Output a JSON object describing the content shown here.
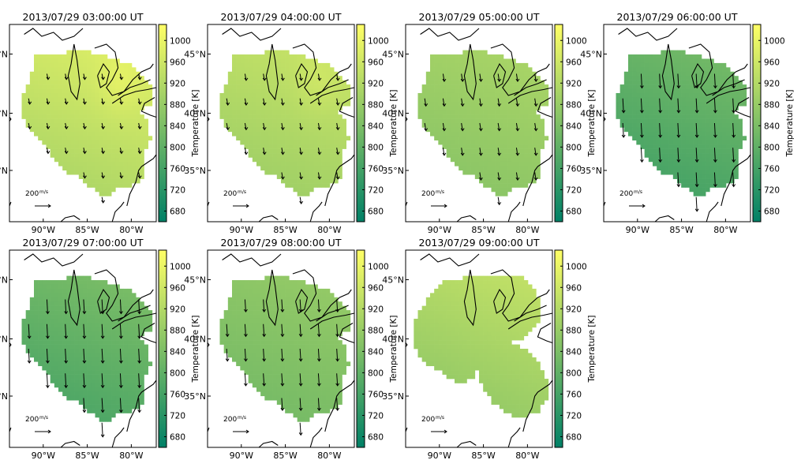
{
  "chart_data": {
    "type": "heatmap",
    "colorbar": {
      "label": "Temperature [K]",
      "min": 660,
      "max": 1030,
      "ticks": [
        680,
        720,
        760,
        800,
        840,
        880,
        920,
        960,
        1000
      ],
      "colormap": "summer",
      "colors": [
        "#008066",
        "#ffff66"
      ]
    },
    "xticks": [
      "90°W",
      "85°W",
      "80°W"
    ],
    "yticks": [
      "45°N",
      "40°N",
      "35°N"
    ],
    "quiver_key_label": "200",
    "quiver_key_unit": "m/s",
    "panels": [
      {
        "title": "2013/07/29 03:00:00 UT",
        "mean_temperature": 940,
        "spread": 60,
        "center_region": "north-east",
        "wind_v": -12,
        "wind_u": 3,
        "has_gap": false
      },
      {
        "title": "2013/07/29 04:00:00 UT",
        "mean_temperature": 915,
        "spread": 50,
        "center_region": "north-east",
        "wind_v": -14,
        "wind_u": 3,
        "has_gap": false
      },
      {
        "title": "2013/07/29 05:00:00 UT",
        "mean_temperature": 880,
        "spread": 40,
        "center_region": "north",
        "wind_v": -16,
        "wind_u": 3,
        "has_gap": false
      },
      {
        "title": "2013/07/29 06:00:00 UT",
        "mean_temperature": 790,
        "spread": 60,
        "center_region": "north",
        "wind_v": -30,
        "wind_u": 2,
        "has_gap": false
      },
      {
        "title": "2013/07/29 07:00:00 UT",
        "mean_temperature": 800,
        "spread": 60,
        "center_region": "north",
        "wind_v": -30,
        "wind_u": 2,
        "has_gap": false
      },
      {
        "title": "2013/07/29 08:00:00 UT",
        "mean_temperature": 850,
        "spread": 40,
        "center_region": "north",
        "wind_v": -26,
        "wind_u": 2,
        "has_gap": false
      },
      {
        "title": "2013/07/29 09:00:00 UT",
        "mean_temperature": 900,
        "spread": 60,
        "center_region": "north",
        "wind_v": 0,
        "wind_u": 0,
        "has_gap": true
      }
    ]
  }
}
